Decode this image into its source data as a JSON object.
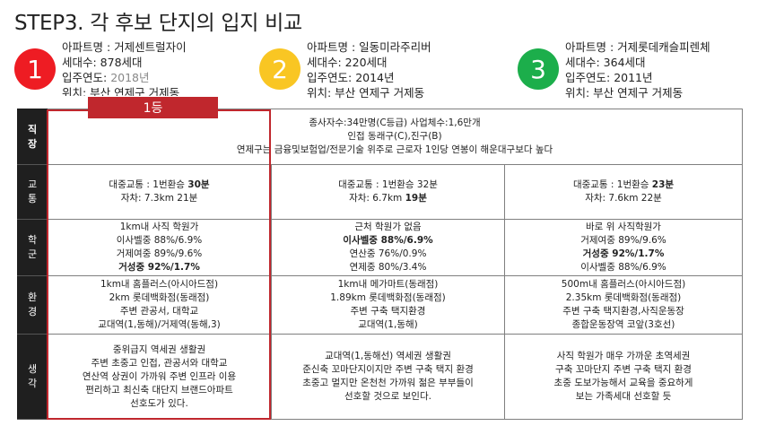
{
  "title": "STEP3. 각 후보 단지의 입지 비교",
  "candidates": [
    {
      "number": "1",
      "color": "#ee1c23",
      "name": "아파트명 : 거제센트럴자이",
      "units": "세대수: 878세대",
      "year_label": "입주연도:",
      "year_value": "2018년",
      "location": "위치: 부산 연제구 거제동"
    },
    {
      "number": "2",
      "color": "#f9c623",
      "name": "아파트명 : 일동미라주리버",
      "units": "세대수: 220세대",
      "year_label": "입주연도:",
      "year_value": "2014년",
      "location": "위치: 부산 연제구 거제동"
    },
    {
      "number": "3",
      "color": "#1cae4b",
      "name": "아파트명 : 거제롯데캐슬피렌체",
      "units": "세대수: 364세대",
      "year_label": "입주연도:",
      "year_value": "2011년",
      "location": "위치: 부산 연제구 거제동"
    }
  ],
  "rank_tag": "1등",
  "rows": {
    "jobs": {
      "header": "직장",
      "line1": "종사자수:34만명(C등급) 사업체수:1,6만개",
      "line2": "인접 동래구(C),진구(B)",
      "line3": "연제구는 금융및보험업/전문기술 위주로 근로자 1인당 연봉이 해운대구보다 높다"
    },
    "transport": {
      "header": "교통",
      "c1": {
        "l1_pre": "대중교통 : 1번환승 ",
        "l1_bold": "30분",
        "l2_pre": "자차: 7.3km 21분",
        "l2_bold": ""
      },
      "c2": {
        "l1_pre": "대중교통 : 1번환승 32분",
        "l1_bold": "",
        "l2_pre": "자차: 6.7km ",
        "l2_bold": "19분"
      },
      "c3": {
        "l1_pre": "대중교통 : 1번환승 ",
        "l1_bold": "23분",
        "l2_pre": "자차: 7.6km 22분",
        "l2_bold": ""
      }
    },
    "school": {
      "header": "학군",
      "c1": [
        "1km내 사직 학원가",
        "이사벨중 88%/6.9%",
        "거제여중 89%/9.6%",
        "거성중 92%/1.7%"
      ],
      "c2": [
        "근처 학원가 없음",
        "이사벨중 88%/6.9%",
        "연산중 76%/0.9%",
        "연제중 80%/3.4%"
      ],
      "c3": [
        "바로 위 사직학원가",
        "거제여중 89%/9.6%",
        "거성중 92%/1.7%",
        "이사벨중 88%/6.9%"
      ]
    },
    "environment": {
      "header": "환경",
      "c1": [
        "1km내 홈플러스(아시아드점)",
        "2km 롯데백화점(동래점)",
        "주변 관공서, 대학교",
        "교대역(1,동해)/거제역(동해,3)"
      ],
      "c2": [
        "1km내 메가마트(동래점)",
        "1.89km 롯데백화점(동래점)",
        "주변 구축 택지환경",
        "교대역(1,동해)"
      ],
      "c3": [
        "500m내 홈플러스(아시아드점)",
        "2.35km 롯데백화점(동래점)",
        "주변 구축 택지환경,사직운동장",
        "종합운동장역 코앞(3호선)"
      ]
    },
    "thoughts": {
      "header": "생각",
      "c1": [
        "중위급지 역세권 생활권",
        "주변 초중고 인접, 관공서와 대학교",
        "연산역 상권이 가까워 주변 인프라 이용",
        "편리하고 최신축 대단지 브랜드아파트",
        "선호도가 있다."
      ],
      "c2": [
        "교대역(1,동해선) 역세권 생활권",
        "준신축 꼬마단지이지만 주변 구축 택지 환경",
        "초중고 멀지만 온천천 가까워 젊은 부부들이",
        "선호할 것으로 보인다."
      ],
      "c3": [
        "사직 학원가 매우 가까운 초역세권",
        "구축 꼬마단지 주변 구축 택지 환경",
        "초중 도보가능해서 교육을 중요하게",
        "보는 가족세대 선호할 듯"
      ]
    }
  }
}
